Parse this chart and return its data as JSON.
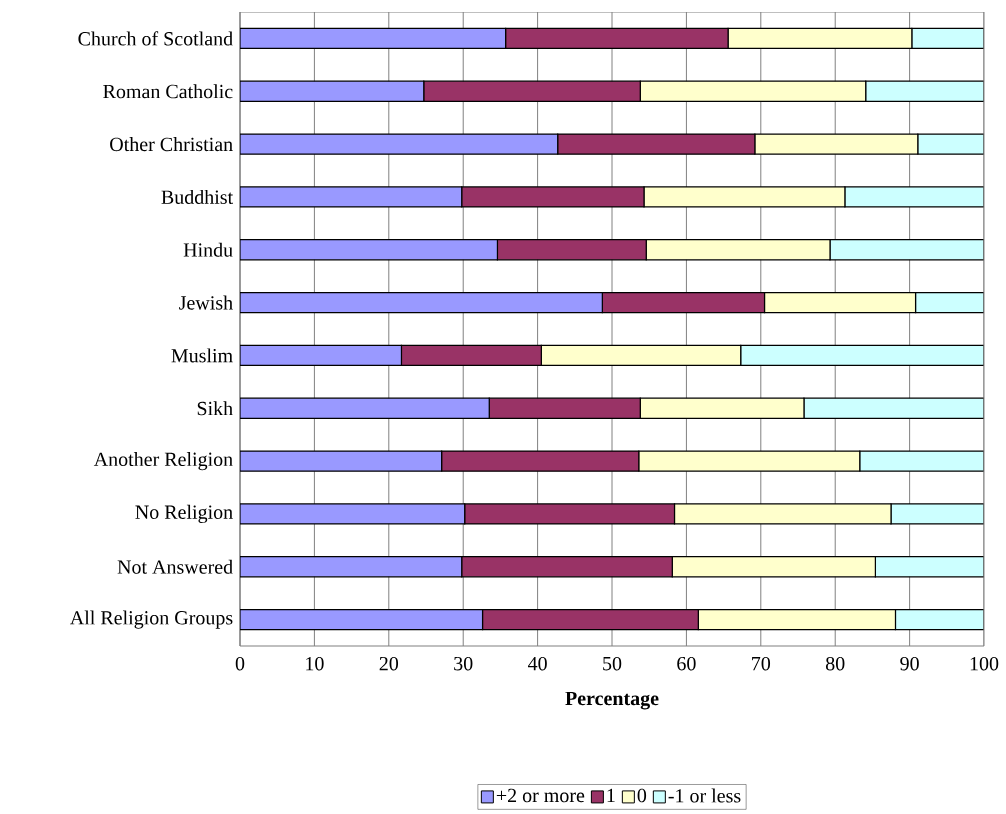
{
  "chart_data": {
    "type": "bar",
    "orientation": "horizontal",
    "stacked": true,
    "categories": [
      "Church of Scotland",
      "Roman Catholic",
      "Other Christian",
      "Buddhist",
      "Hindu",
      "Jewish",
      "Muslim",
      "Sikh",
      "Another Religion",
      "No Religion",
      "Not Answered",
      "All Religion Groups"
    ],
    "series": [
      {
        "name": "+2 or more",
        "color": "#9999ff",
        "values": [
          35.7,
          24.7,
          42.7,
          29.8,
          34.6,
          48.7,
          21.7,
          33.5,
          27.1,
          30.2,
          29.8,
          32.6
        ]
      },
      {
        "name": "1",
        "color": "#993366",
        "values": [
          29.9,
          29.1,
          26.5,
          24.5,
          20.0,
          21.8,
          18.8,
          20.3,
          26.5,
          28.2,
          28.3,
          29.0
        ]
      },
      {
        "name": "0",
        "color": "#ffffcc",
        "values": [
          24.7,
          30.3,
          21.9,
          27.0,
          24.7,
          20.3,
          26.8,
          22.0,
          29.7,
          29.1,
          27.3,
          26.5
        ]
      },
      {
        "name": "-1 or less",
        "color": "#ccffff",
        "values": [
          9.7,
          15.9,
          8.9,
          18.7,
          20.7,
          9.2,
          32.7,
          24.2,
          16.7,
          12.5,
          14.6,
          11.9
        ]
      }
    ],
    "xlim": [
      0,
      100
    ],
    "xticks": [
      0,
      10,
      20,
      30,
      40,
      50,
      60,
      70,
      80,
      90,
      100
    ],
    "xlabel": "Percentage",
    "grid": "x",
    "legend": "bottom"
  }
}
